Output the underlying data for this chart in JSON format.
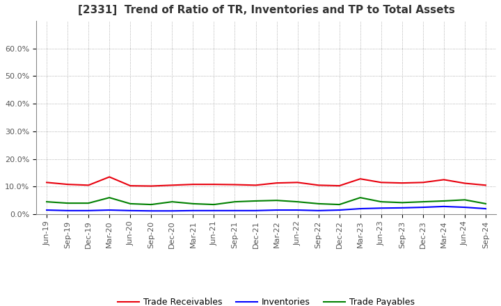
{
  "title": "[2331]  Trend of Ratio of TR, Inventories and TP to Total Assets",
  "x_labels": [
    "Jun-19",
    "Sep-19",
    "Dec-19",
    "Mar-20",
    "Jun-20",
    "Sep-20",
    "Dec-20",
    "Mar-21",
    "Jun-21",
    "Sep-21",
    "Dec-21",
    "Mar-22",
    "Jun-22",
    "Sep-22",
    "Dec-22",
    "Mar-23",
    "Jun-23",
    "Sep-23",
    "Dec-23",
    "Mar-24",
    "Jun-24",
    "Sep-24"
  ],
  "trade_receivables": [
    11.5,
    10.8,
    10.5,
    13.5,
    10.3,
    10.2,
    10.5,
    10.8,
    10.8,
    10.7,
    10.5,
    11.3,
    11.5,
    10.5,
    10.3,
    12.8,
    11.5,
    11.3,
    11.5,
    12.5,
    11.2,
    10.5
  ],
  "inventories": [
    1.5,
    1.3,
    1.3,
    1.5,
    1.3,
    1.2,
    1.2,
    1.3,
    1.3,
    1.3,
    1.3,
    1.5,
    1.5,
    1.3,
    1.5,
    2.0,
    2.2,
    2.3,
    2.5,
    2.8,
    2.5,
    2.0
  ],
  "trade_payables": [
    4.5,
    4.0,
    4.0,
    6.0,
    3.8,
    3.5,
    4.5,
    3.8,
    3.5,
    4.5,
    4.8,
    5.0,
    4.5,
    3.8,
    3.5,
    6.0,
    4.5,
    4.2,
    4.5,
    4.8,
    5.2,
    3.8
  ],
  "tr_color": "#e8000d",
  "inv_color": "#0000ff",
  "tp_color": "#008000",
  "ylim": [
    0,
    70
  ],
  "yticks": [
    0,
    10,
    20,
    30,
    40,
    50,
    60
  ],
  "ytick_labels": [
    "0.0%",
    "10.0%",
    "20.0%",
    "30.0%",
    "40.0%",
    "50.0%",
    "60.0%"
  ],
  "bg_color": "#ffffff",
  "plot_bg_color": "#ffffff",
  "grid_color": "#999999",
  "legend_labels": [
    "Trade Receivables",
    "Inventories",
    "Trade Payables"
  ],
  "line_width": 1.5,
  "title_fontsize": 11,
  "tick_fontsize": 8
}
